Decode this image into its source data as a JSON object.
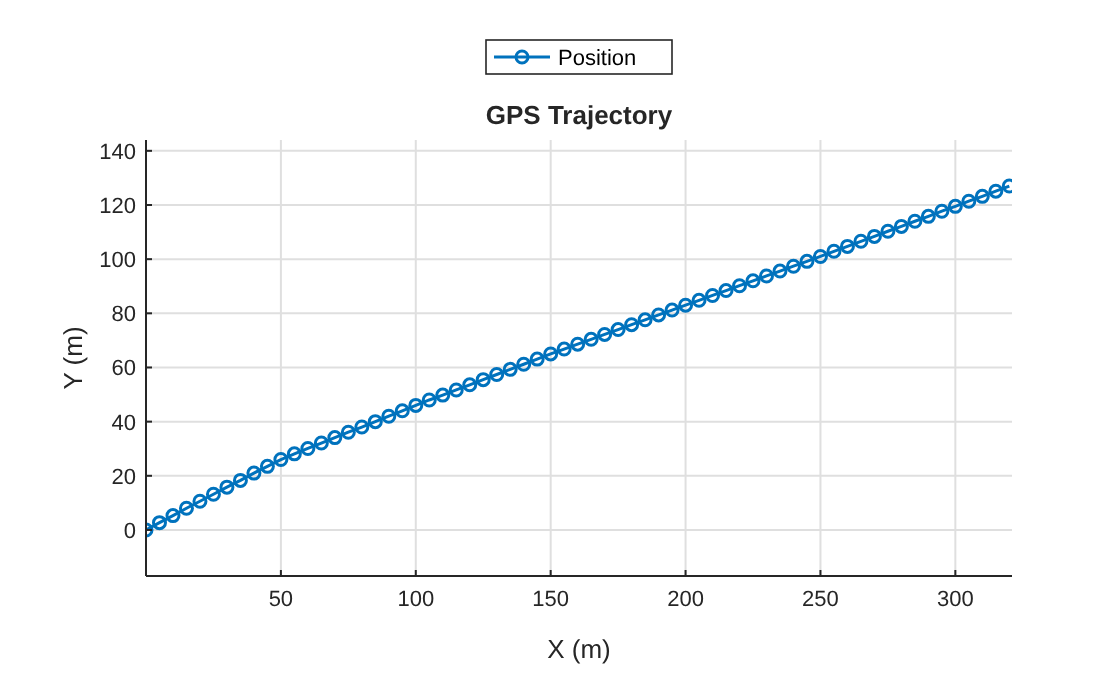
{
  "chart_data": {
    "type": "line",
    "title": "GPS Trajectory",
    "xlabel": "X (m)",
    "ylabel": "Y (m)",
    "x": [
      0,
      5,
      10,
      15,
      20,
      25,
      30,
      35,
      40,
      45,
      50,
      55,
      60,
      65,
      70,
      75,
      80,
      85,
      90,
      95,
      100,
      105,
      110,
      115,
      120,
      125,
      130,
      135,
      140,
      145,
      150,
      155,
      160,
      165,
      170,
      175,
      180,
      185,
      190,
      195,
      200,
      205,
      210,
      215,
      220,
      225,
      230,
      235,
      240,
      245,
      250,
      255,
      260,
      265,
      270,
      275,
      280,
      285,
      290,
      295,
      300,
      305,
      310,
      315,
      320
    ],
    "series": [
      {
        "name": "Position",
        "color": "#0072bd",
        "values": [
          0,
          2.7,
          5.3,
          8,
          10.6,
          13.2,
          15.8,
          18.3,
          21,
          23.5,
          26,
          28.1,
          30.1,
          32.1,
          34.1,
          36.1,
          38,
          40,
          42,
          44,
          46,
          48,
          49.8,
          51.7,
          53.6,
          55.5,
          57.4,
          59.3,
          61.2,
          63.1,
          65,
          66.8,
          68.6,
          70.4,
          72.2,
          74,
          75.8,
          77.6,
          79.4,
          81.2,
          83,
          84.8,
          86.6,
          88.4,
          90.2,
          92,
          93.8,
          95.6,
          97.4,
          99.2,
          101,
          102.9,
          104.7,
          106.6,
          108.4,
          110.3,
          112.1,
          114,
          115.8,
          117.7,
          119.5,
          121.4,
          123.2,
          125.1,
          127
        ]
      }
    ],
    "xlim": [
      0,
      321
    ],
    "xticks": [
      50,
      100,
      150,
      200,
      250,
      300
    ],
    "ylim": [
      -17,
      144
    ],
    "yticks": [
      0,
      20,
      40,
      60,
      80,
      100,
      120,
      140
    ],
    "grid": true,
    "legend": "top",
    "marker": "circle",
    "line_style": "solid"
  }
}
